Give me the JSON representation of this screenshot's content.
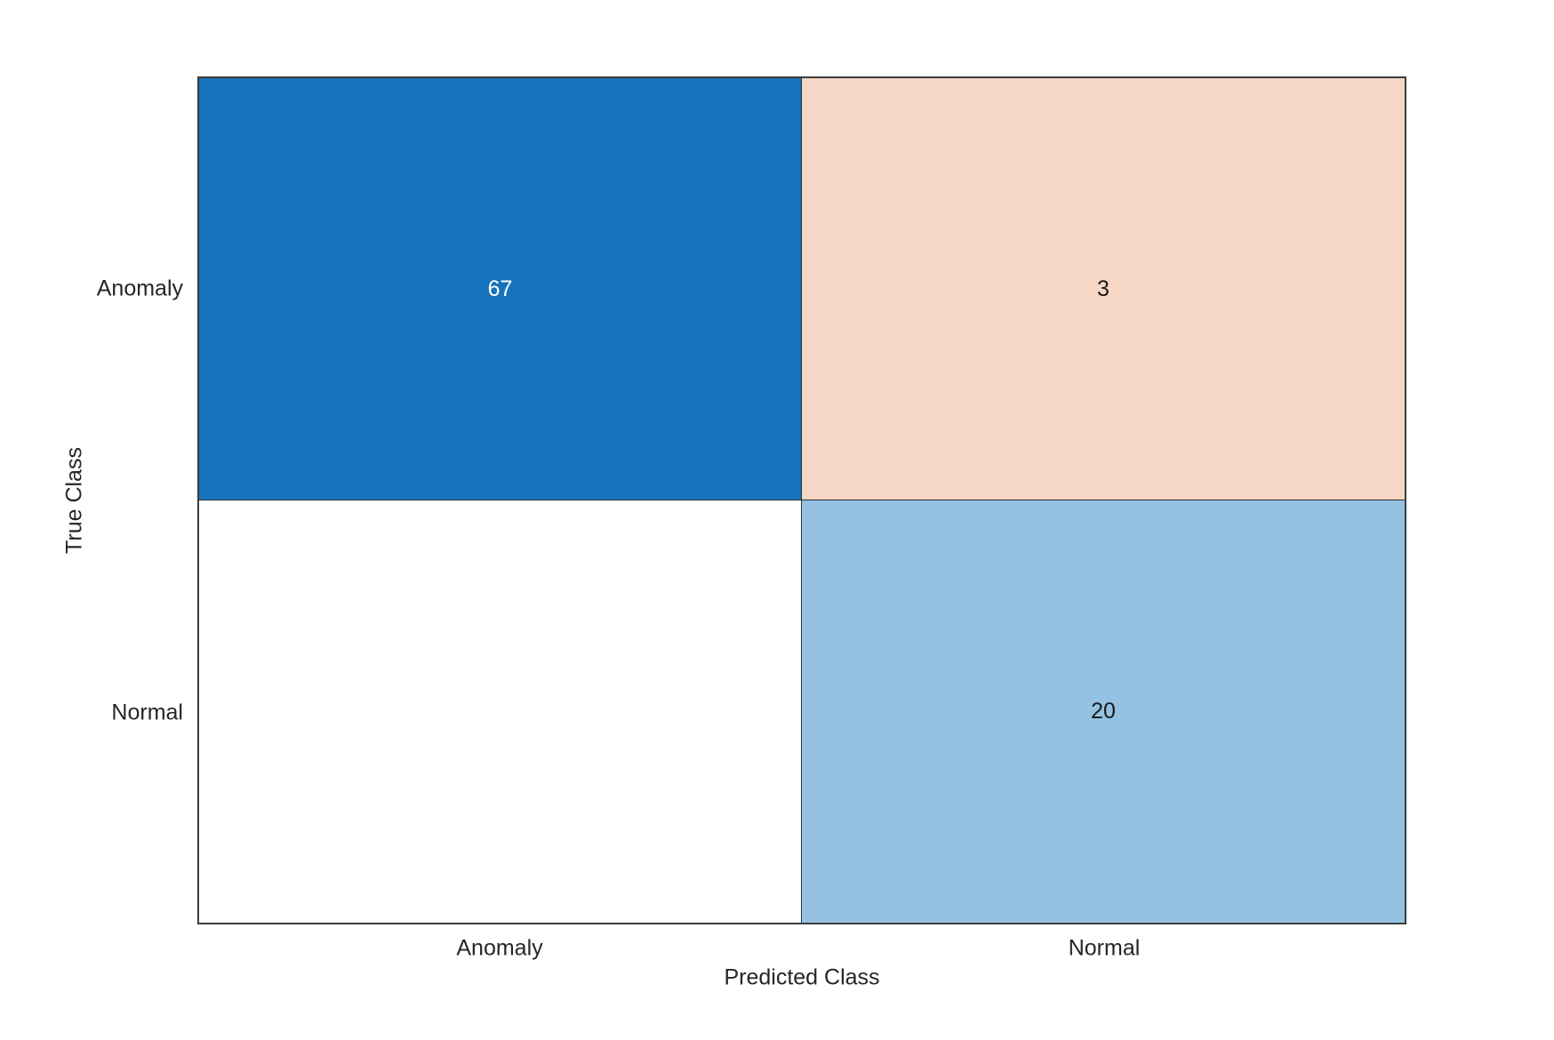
{
  "chart_data": {
    "type": "heatmap",
    "subtype": "confusion-matrix",
    "title": "",
    "xlabel": "Predicted Class",
    "ylabel": "True Class",
    "x_categories": [
      "Anomaly",
      "Normal"
    ],
    "y_categories": [
      "Anomaly",
      "Normal"
    ],
    "matrix": [
      [
        67,
        3
      ],
      [
        0,
        20
      ]
    ],
    "cells": [
      {
        "true_class": "Anomaly",
        "predicted_class": "Anomaly",
        "value": 67,
        "display": "67",
        "bg": "#1873bd",
        "text_color": "#ffffff"
      },
      {
        "true_class": "Anomaly",
        "predicted_class": "Normal",
        "value": 3,
        "display": "3",
        "bg": "#f6d6c4",
        "text_color": "#1a1a1a"
      },
      {
        "true_class": "Normal",
        "predicted_class": "Anomaly",
        "value": 0,
        "display": "",
        "bg": "#ffffff",
        "text_color": "#1a1a1a"
      },
      {
        "true_class": "Normal",
        "predicted_class": "Normal",
        "value": 20,
        "display": "20",
        "bg": "#95c2e3",
        "text_color": "#1a1a1a"
      }
    ],
    "layout": {
      "grid": false,
      "legend": "none"
    },
    "colors": {
      "diagonal_max": "#1873bd",
      "diagonal_low": "#95c2e3",
      "off_diagonal": "#f6d6c4",
      "zero_cell": "#ffffff",
      "outer_border": "#3b3b3b",
      "gridline": "#2e2e2e",
      "label_text": "#262626"
    }
  }
}
